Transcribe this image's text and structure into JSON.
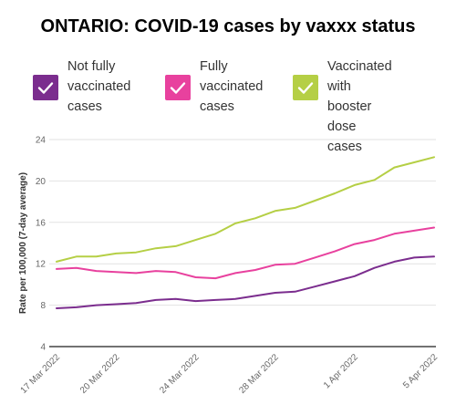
{
  "title": "ONTARIO: COVID-19 cases by vaxxx status",
  "legend": [
    {
      "label": "Not fully\nvaccinated\ncases",
      "color": "#7b2d8e",
      "icon": "check-icon"
    },
    {
      "label": "Fully\nvaccinated\ncases",
      "color": "#e8419e",
      "icon": "check-icon"
    },
    {
      "label": "Vaccinated with\nbooster dose\ncases",
      "color": "#b5cf45",
      "icon": "check-icon"
    }
  ],
  "chart_data": {
    "type": "line",
    "ylabel": "Rate per 100,000 (7-day average)",
    "xlabel": "",
    "ylim": [
      4,
      24
    ],
    "yticks": [
      4,
      8,
      12,
      16,
      20,
      24
    ],
    "grid": true,
    "x": [
      "17 Mar 2022",
      "18 Mar 2022",
      "19 Mar 2022",
      "20 Mar 2022",
      "21 Mar 2022",
      "22 Mar 2022",
      "23 Mar 2022",
      "24 Mar 2022",
      "25 Mar 2022",
      "26 Mar 2022",
      "27 Mar 2022",
      "28 Mar 2022",
      "29 Mar 2022",
      "30 Mar 2022",
      "31 Mar 2022",
      "1 Apr 2022",
      "2 Apr 2022",
      "3 Apr 2022",
      "4 Apr 2022",
      "5 Apr 2022"
    ],
    "xticks": [
      "17 Mar 2022",
      "20 Mar 2022",
      "24 Mar 2022",
      "28 Mar 2022",
      "1 Apr 2022",
      "5 Apr 2022"
    ],
    "series": [
      {
        "name": "Not fully vaccinated cases",
        "color": "#7b2d8e",
        "values": [
          7.7,
          7.8,
          8.0,
          8.1,
          8.2,
          8.5,
          8.6,
          8.4,
          8.5,
          8.6,
          8.9,
          9.2,
          9.3,
          9.8,
          10.3,
          10.8,
          11.6,
          12.2,
          12.6,
          12.7
        ]
      },
      {
        "name": "Fully vaccinated cases",
        "color": "#e8419e",
        "values": [
          11.5,
          11.6,
          11.3,
          11.2,
          11.1,
          11.3,
          11.2,
          10.7,
          10.6,
          11.1,
          11.4,
          11.9,
          12.0,
          12.6,
          13.2,
          13.9,
          14.3,
          14.9,
          15.2,
          15.5
        ]
      },
      {
        "name": "Vaccinated with booster dose cases",
        "color": "#b5cf45",
        "values": [
          12.2,
          12.7,
          12.7,
          13.0,
          13.1,
          13.5,
          13.7,
          14.3,
          14.9,
          15.9,
          16.4,
          17.1,
          17.4,
          18.1,
          18.8,
          19.6,
          20.1,
          21.3,
          21.8,
          22.3
        ]
      }
    ]
  }
}
